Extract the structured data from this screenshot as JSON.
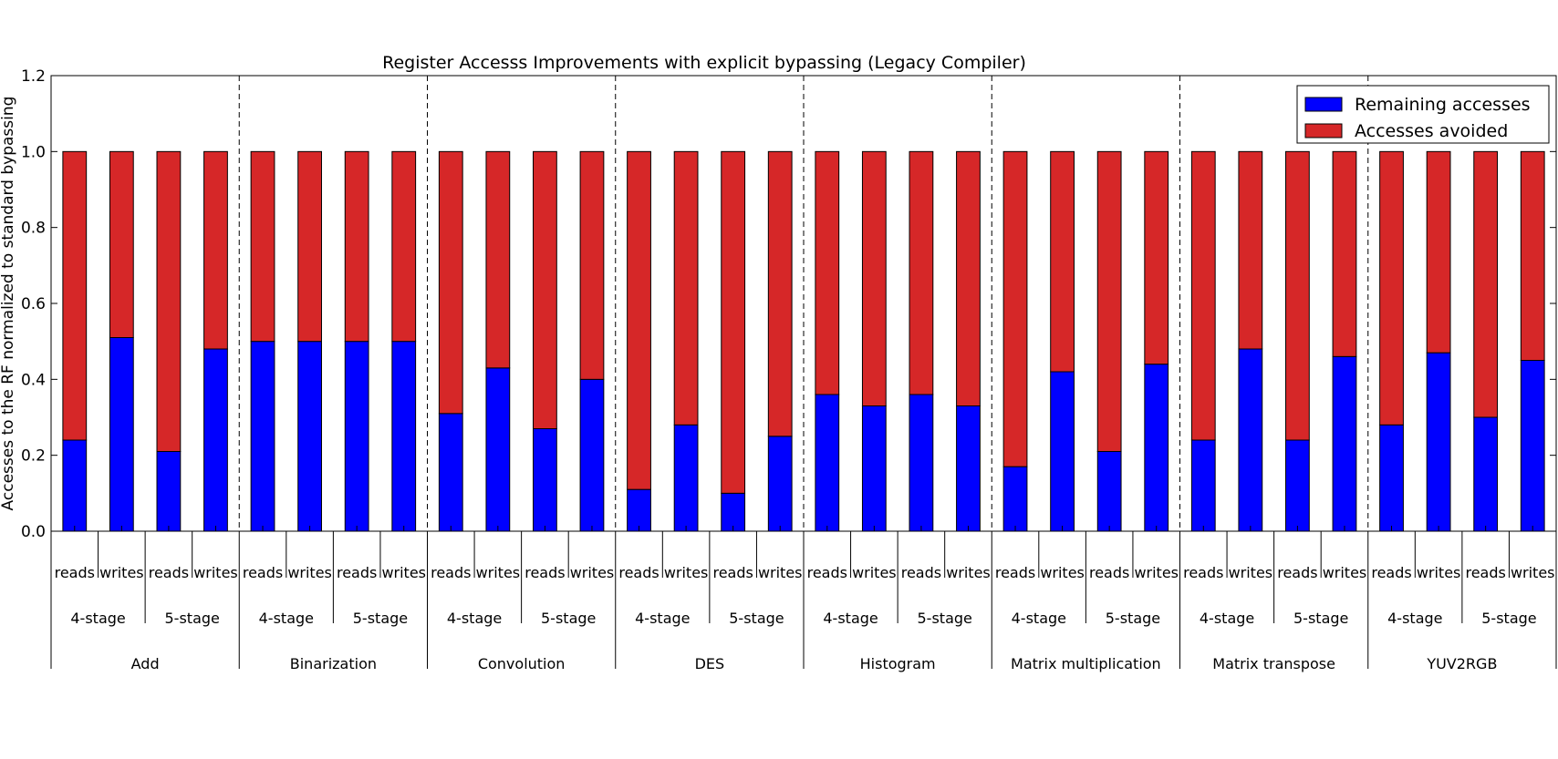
{
  "chart_data": {
    "type": "bar",
    "stacked": true,
    "title": "Register Accesss Improvements with explicit bypassing (Legacy Compiler)",
    "xlabel": "",
    "ylabel": "Accesses to the RF normalized to standard bypassing",
    "ylim": [
      0,
      1.2
    ],
    "yticks": [
      "0.0",
      "0.2",
      "0.4",
      "0.6",
      "0.8",
      "1.0",
      "1.2"
    ],
    "ytick_values": [
      0,
      0.2,
      0.4,
      0.6,
      0.8,
      1.0,
      1.2
    ],
    "legend_position": "top-right",
    "colors": {
      "remaining": "#0000ff",
      "avoided": "#d62728"
    },
    "groups": [
      "Add",
      "Binarization",
      "Convolution",
      "DES",
      "Histogram",
      "Matrix multiplication",
      "Matrix transpose",
      "YUV2RGB"
    ],
    "subgroups": [
      "4-stage",
      "5-stage"
    ],
    "access_types": [
      "reads",
      "writes"
    ],
    "categories": [
      "Add 4-stage reads",
      "Add 4-stage writes",
      "Add 5-stage reads",
      "Add 5-stage writes",
      "Binarization 4-stage reads",
      "Binarization 4-stage writes",
      "Binarization 5-stage reads",
      "Binarization 5-stage writes",
      "Convolution 4-stage reads",
      "Convolution 4-stage writes",
      "Convolution 5-stage reads",
      "Convolution 5-stage writes",
      "DES 4-stage reads",
      "DES 4-stage writes",
      "DES 5-stage reads",
      "DES 5-stage writes",
      "Histogram 4-stage reads",
      "Histogram 4-stage writes",
      "Histogram 5-stage reads",
      "Histogram 5-stage writes",
      "Matrix multiplication 4-stage reads",
      "Matrix multiplication 4-stage writes",
      "Matrix multiplication 5-stage reads",
      "Matrix multiplication 5-stage writes",
      "Matrix transpose 4-stage reads",
      "Matrix transpose 4-stage writes",
      "Matrix transpose 5-stage reads",
      "Matrix transpose 5-stage writes",
      "YUV2RGB 4-stage reads",
      "YUV2RGB 4-stage writes",
      "YUV2RGB 5-stage reads",
      "YUV2RGB 5-stage writes"
    ],
    "series": [
      {
        "name": "Remaining accesses",
        "color": "#0000ff",
        "values": [
          0.24,
          0.51,
          0.21,
          0.48,
          0.5,
          0.5,
          0.5,
          0.5,
          0.31,
          0.43,
          0.27,
          0.4,
          0.11,
          0.28,
          0.1,
          0.25,
          0.36,
          0.33,
          0.36,
          0.33,
          0.17,
          0.42,
          0.21,
          0.44,
          0.24,
          0.48,
          0.24,
          0.46,
          0.28,
          0.47,
          0.3,
          0.45
        ]
      },
      {
        "name": "Accesses avoided",
        "color": "#d62728",
        "values": [
          0.76,
          0.49,
          0.79,
          0.52,
          0.5,
          0.5,
          0.5,
          0.5,
          0.69,
          0.57,
          0.73,
          0.6,
          0.89,
          0.72,
          0.9,
          0.75,
          0.64,
          0.67,
          0.64,
          0.67,
          0.83,
          0.58,
          0.79,
          0.56,
          0.76,
          0.52,
          0.76,
          0.54,
          0.72,
          0.53,
          0.7,
          0.55
        ]
      }
    ]
  }
}
